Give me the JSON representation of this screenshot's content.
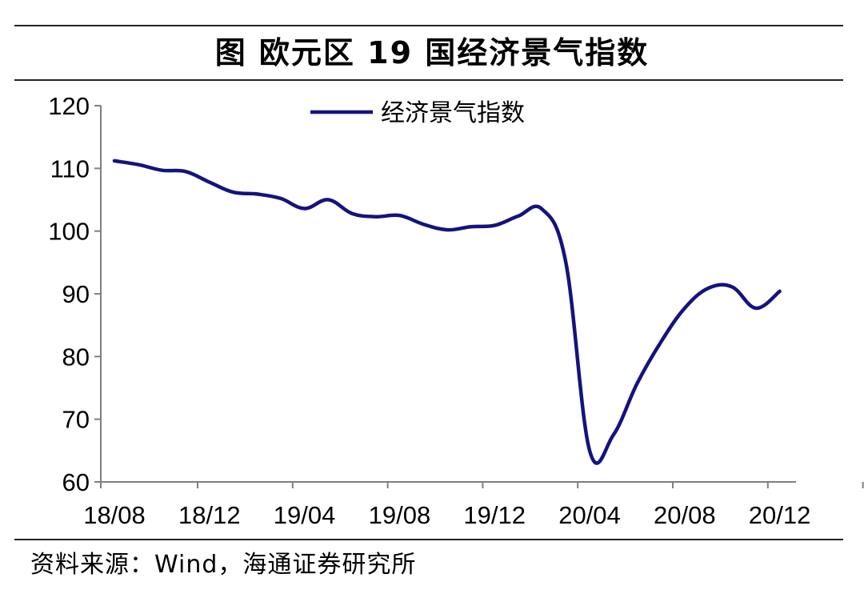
{
  "header": {
    "title": "图  欧元区 19 国经济景气指数"
  },
  "footer": {
    "source": "资料来源：Wind，海通证券研究所"
  },
  "colors": {
    "line": "#14137e",
    "axis": "#7f7f7f",
    "rule": "#222222"
  },
  "chart_data": {
    "type": "line",
    "title": "图  欧元区 19 国经济景气指数",
    "xlabel": "",
    "ylabel": "",
    "ylim": [
      60,
      120
    ],
    "yticks": [
      60,
      70,
      80,
      90,
      100,
      110,
      120
    ],
    "xtick_labels": [
      "18/08",
      "18/12",
      "19/04",
      "19/08",
      "19/12",
      "20/04",
      "20/08",
      "20/12"
    ],
    "grid": false,
    "legend": "top-center",
    "categories": [
      "18/08",
      "18/09",
      "18/10",
      "18/11",
      "18/12",
      "19/01",
      "19/02",
      "19/03",
      "19/04",
      "19/05",
      "19/06",
      "19/07",
      "19/08",
      "19/09",
      "19/10",
      "19/11",
      "19/12",
      "20/01",
      "20/02",
      "20/03",
      "20/04",
      "20/05",
      "20/06",
      "20/07",
      "20/08",
      "20/09",
      "20/10",
      "20/11",
      "20/12"
    ],
    "series": [
      {
        "name": "经济景气指数",
        "values": [
          111.2,
          110.6,
          109.7,
          109.5,
          107.8,
          106.2,
          105.9,
          105.2,
          103.6,
          105.0,
          102.8,
          102.3,
          102.5,
          101.1,
          100.2,
          100.7,
          100.9,
          102.4,
          103.5,
          95.0,
          65.0,
          67.5,
          75.7,
          82.3,
          87.7,
          90.9,
          91.1,
          87.7,
          90.4
        ]
      }
    ]
  }
}
